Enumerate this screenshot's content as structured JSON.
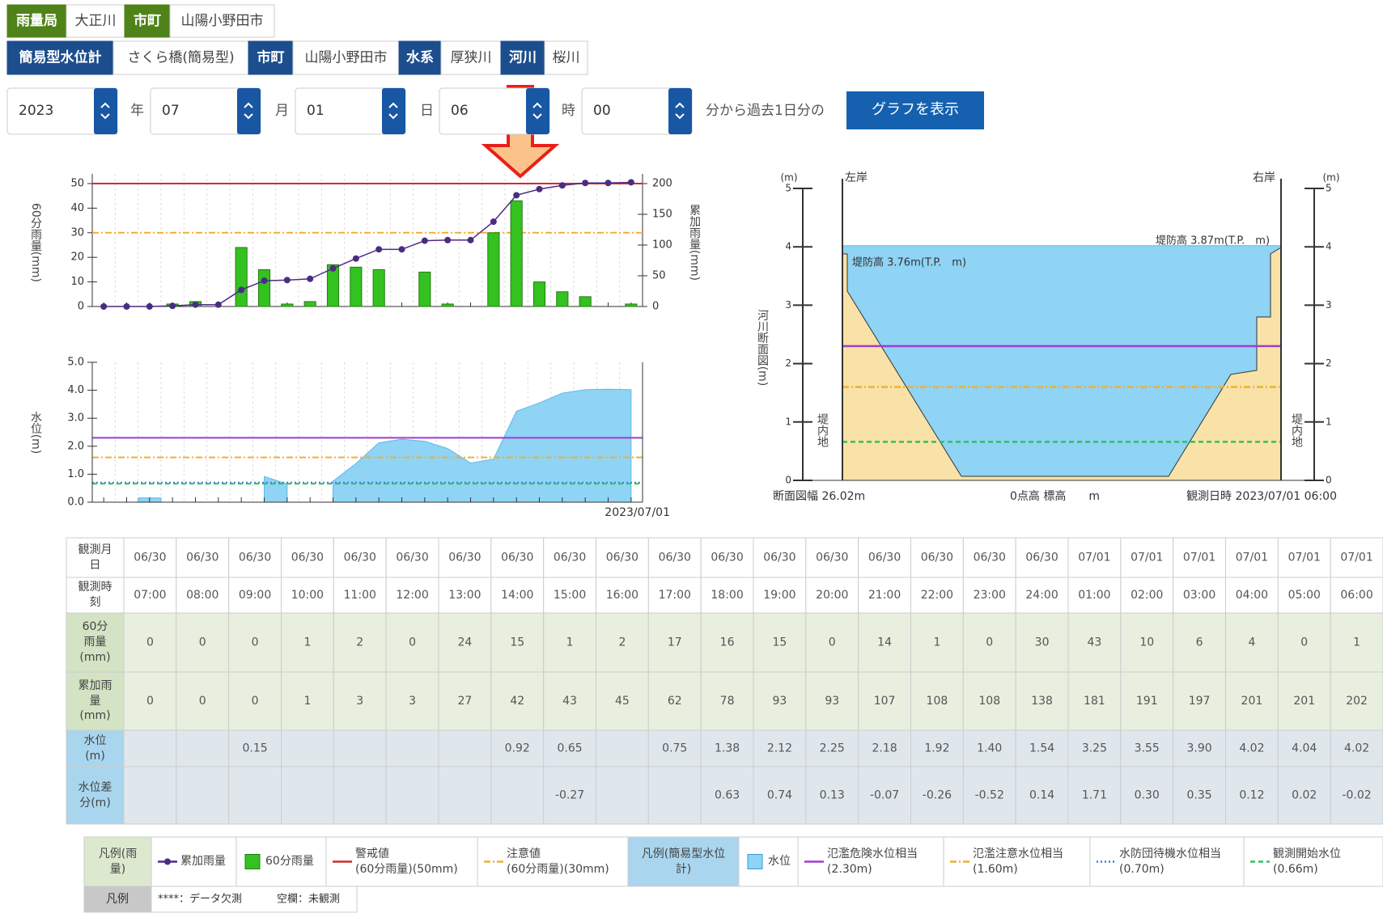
{
  "tabs": {
    "row1": [
      "雨量局",
      "大正川",
      "市町",
      "山陽小野田市"
    ],
    "row2": [
      "簡易型水位計",
      "さくら橋(簡易型)",
      "市町",
      "山陽小野田市",
      "水系",
      "厚狭川",
      "河川",
      "桜川"
    ]
  },
  "form": {
    "fields": [
      {
        "value": "2023",
        "unit": "年"
      },
      {
        "value": "07",
        "unit": "月"
      },
      {
        "value": "01",
        "unit": "日"
      },
      {
        "value": "06",
        "unit": "時"
      },
      {
        "value": "00",
        "unit": "分から過去1日分の"
      }
    ],
    "button": "グラフを表示"
  },
  "chart_data": [
    {
      "type": "bar",
      "axis_label": "60分雨量(mm)",
      "y2_axis_label": "累加雨量(mm)",
      "ylim": [
        0,
        50
      ],
      "yticks": [
        0,
        10,
        20,
        30,
        40,
        50
      ],
      "y2lim": [
        0,
        200
      ],
      "y2ticks": [
        0,
        50,
        100,
        150,
        200
      ],
      "grid": true,
      "series": [
        {
          "name": "60分雨量",
          "type": "bar",
          "color": "#33c21f",
          "values": [
            0,
            0,
            0,
            1,
            2,
            0,
            24,
            15,
            1,
            2,
            17,
            16,
            15,
            0,
            14,
            1,
            0,
            30,
            43,
            10,
            6,
            4,
            0,
            1
          ]
        },
        {
          "name": "累加雨量",
          "type": "line",
          "axis": "y2",
          "color": "#4b2c82",
          "values": [
            0,
            0,
            0,
            1,
            3,
            3,
            27,
            42,
            43,
            45,
            62,
            78,
            93,
            93,
            107,
            108,
            108,
            138,
            181,
            191,
            197,
            201,
            201,
            202
          ]
        }
      ],
      "thresholds": [
        {
          "name": "警戒値",
          "note": "(60分雨量)(50mm)",
          "value": 50,
          "color": "#d42a2a",
          "style": "solid"
        },
        {
          "name": "注意値",
          "note": "(60分雨量)(30mm)",
          "value": 30,
          "color": "#f0b030",
          "style": "dashdot"
        }
      ]
    },
    {
      "type": "area",
      "axis_label": "水位(m)",
      "x_label": "2023/07/01",
      "ylim": [
        0,
        5
      ],
      "yticks": [
        {
          "value": 0,
          "label": "0.0"
        },
        {
          "value": 1,
          "label": "1.0"
        },
        {
          "value": 2,
          "label": "2.0"
        },
        {
          "value": 3,
          "label": "3.0"
        },
        {
          "value": 4,
          "label": "4.0"
        },
        {
          "value": 5,
          "label": "5.0"
        }
      ],
      "grid": true,
      "series": [
        {
          "name": "水位",
          "color": "#8fd3f5",
          "values": [
            null,
            null,
            0.15,
            null,
            null,
            null,
            null,
            0.92,
            0.65,
            null,
            0.75,
            1.38,
            2.12,
            2.25,
            2.18,
            1.92,
            1.4,
            1.54,
            3.25,
            3.55,
            3.9,
            4.02,
            4.04,
            4.02
          ]
        }
      ],
      "thresholds": [
        {
          "name": "氾濫危険水位相当",
          "note": "(2.30m)",
          "value": 2.3,
          "color": "#a23bd0",
          "style": "solid"
        },
        {
          "name": "氾濫注意水位相当",
          "note": "(1.60m)",
          "value": 1.6,
          "color": "#f0b030",
          "style": "dashdot"
        },
        {
          "name": "水防団待機水位相当",
          "note": "(0.70m)",
          "value": 0.7,
          "color": "#3a7fd0",
          "style": "dotted"
        },
        {
          "name": "観測開始水位",
          "note": "(0.66m)",
          "value": 0.66,
          "color": "#35c05a",
          "style": "dashed"
        }
      ]
    },
    {
      "type": "section",
      "axis_label": "河川断面図(m)",
      "unit_label": "(m)",
      "left_bank": "左岸",
      "right_bank": "右岸",
      "inland": "堤内地",
      "levee_left": "堤防高 3.76m(T.P.　m)",
      "levee_right": "堤防高 3.87m(T.P.　m)",
      "width_label": "断面図幅 26.02m",
      "zero_label": "0点高 標高　　m",
      "time_label": "観測日時 2023/07/01 06:00",
      "ylim": [
        0,
        5
      ],
      "yticks": [
        0,
        1,
        2,
        3,
        4,
        5
      ],
      "water_level": 4.02,
      "water_color": "#8fd3f5",
      "ground_color": "#f8e2a8",
      "levels": [
        {
          "value": 2.3,
          "color": "#a23bd0",
          "style": "solid"
        },
        {
          "value": 1.6,
          "color": "#f0b030",
          "style": "dashdot"
        },
        {
          "value": 0.66,
          "color": "#35c05a",
          "style": "dashed"
        }
      ]
    }
  ],
  "table": {
    "rows": [
      {
        "header": "観測月日",
        "cells": [
          "06/30",
          "06/30",
          "06/30",
          "06/30",
          "06/30",
          "06/30",
          "06/30",
          "06/30",
          "06/30",
          "06/30",
          "06/30",
          "06/30",
          "06/30",
          "06/30",
          "06/30",
          "06/30",
          "06/30",
          "06/30",
          "07/01",
          "07/01",
          "07/01",
          "07/01",
          "07/01",
          "07/01"
        ]
      },
      {
        "header": "観測時刻",
        "cells": [
          "07:00",
          "08:00",
          "09:00",
          "10:00",
          "11:00",
          "12:00",
          "13:00",
          "14:00",
          "15:00",
          "16:00",
          "17:00",
          "18:00",
          "19:00",
          "20:00",
          "21:00",
          "22:00",
          "23:00",
          "24:00",
          "01:00",
          "02:00",
          "03:00",
          "04:00",
          "05:00",
          "06:00"
        ]
      },
      {
        "header": "60分雨量(mm)",
        "cells": [
          "0",
          "0",
          "0",
          "1",
          "2",
          "0",
          "24",
          "15",
          "1",
          "2",
          "17",
          "16",
          "15",
          "0",
          "14",
          "1",
          "0",
          "30",
          "43",
          "10",
          "6",
          "4",
          "0",
          "1"
        ]
      },
      {
        "header": "累加雨量(mm)",
        "cells": [
          "0",
          "0",
          "0",
          "1",
          "3",
          "3",
          "27",
          "42",
          "43",
          "45",
          "62",
          "78",
          "93",
          "93",
          "107",
          "108",
          "108",
          "138",
          "181",
          "191",
          "197",
          "201",
          "201",
          "202"
        ]
      },
      {
        "header": "水位(m)",
        "cells": [
          null,
          null,
          "0.15",
          null,
          null,
          null,
          null,
          "0.92",
          "0.65",
          null,
          "0.75",
          "1.38",
          "2.12",
          "2.25",
          "2.18",
          "1.92",
          "1.40",
          "1.54",
          "3.25",
          "3.55",
          "3.90",
          "4.02",
          "4.04",
          "4.02"
        ]
      },
      {
        "header": "水位差分(m)",
        "cells": [
          null,
          null,
          null,
          null,
          null,
          null,
          null,
          null,
          "-0.27",
          null,
          null,
          "0.63",
          "0.74",
          "0.13",
          "-0.07",
          "-0.26",
          "-0.52",
          "0.14",
          "1.71",
          "0.30",
          "0.35",
          "0.12",
          "0.02",
          "-0.02"
        ]
      }
    ]
  },
  "legend": {
    "rain_title": "凡例(雨量)",
    "level_title": "凡例(簡易型水位計)",
    "note_title": "凡例",
    "missing": "****：データ欠測",
    "blank": "空欄：未観測"
  }
}
